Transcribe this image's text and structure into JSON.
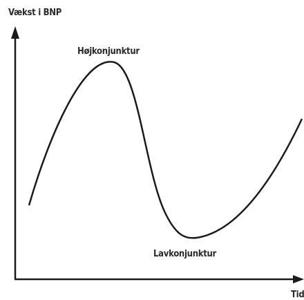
{
  "axes": {
    "y_label": "Vækst i BNP",
    "x_label": "Tid"
  },
  "labels": {
    "peak": "Højkonjunktur",
    "trough": "Lavkonjunktur"
  }
}
